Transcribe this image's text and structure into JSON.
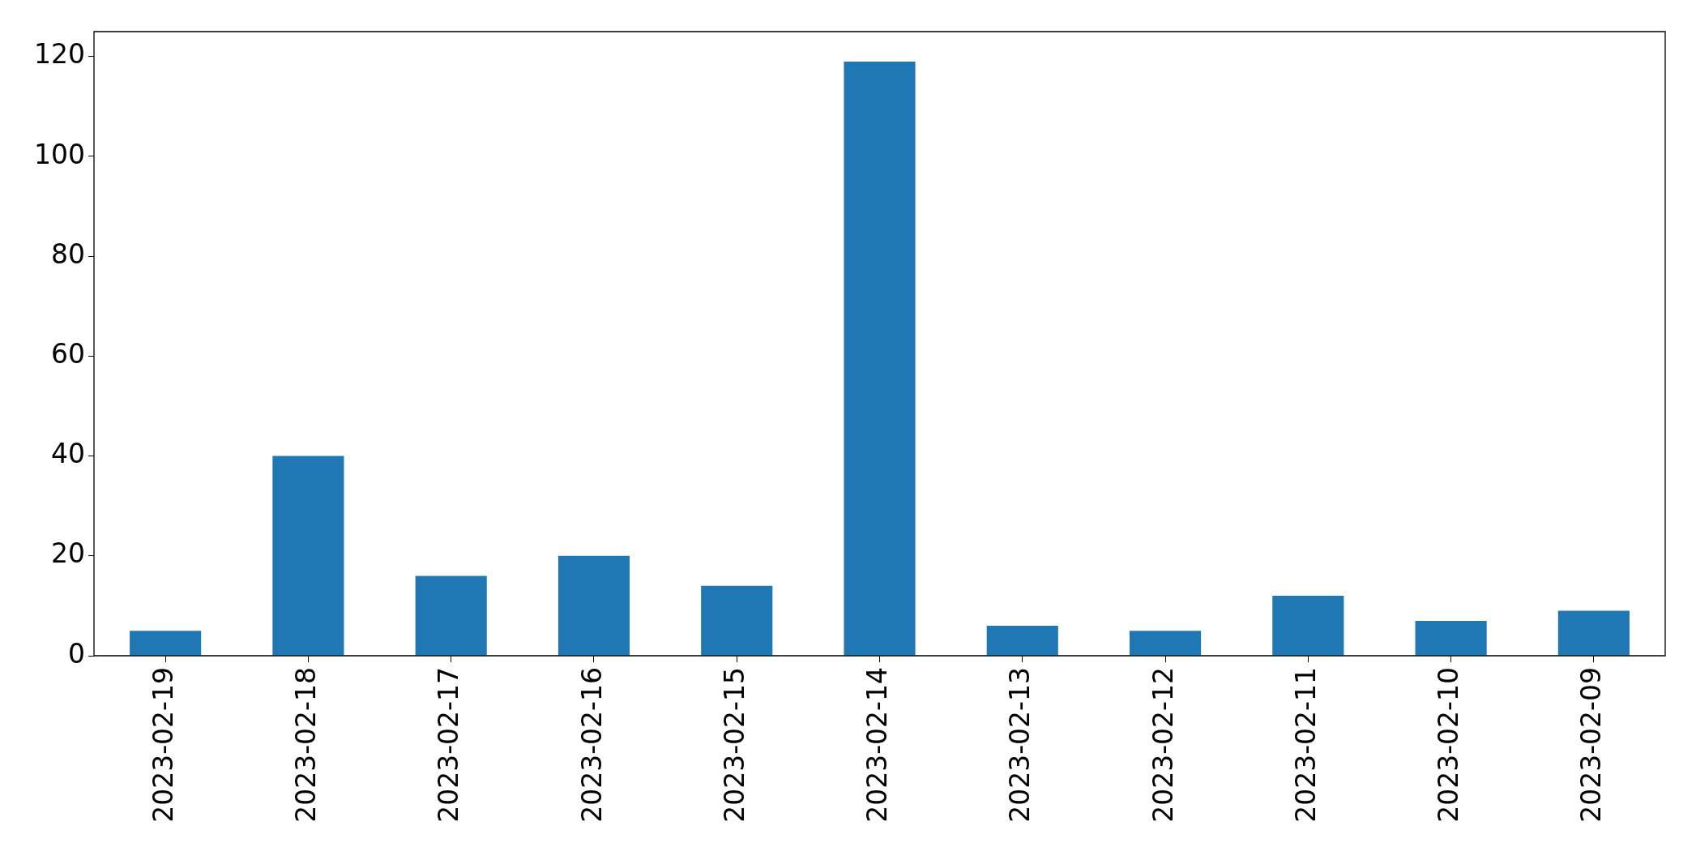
{
  "chart_data": {
    "type": "bar",
    "categories": [
      "2023-02-19",
      "2023-02-18",
      "2023-02-17",
      "2023-02-16",
      "2023-02-15",
      "2023-02-14",
      "2023-02-13",
      "2023-02-12",
      "2023-02-11",
      "2023-02-10",
      "2023-02-09"
    ],
    "values": [
      5,
      40,
      16,
      20,
      14,
      119,
      6,
      5,
      12,
      7,
      9
    ],
    "color": "#1f77b4",
    "ylim": [
      0,
      125
    ],
    "yticks": [
      0,
      20,
      40,
      60,
      80,
      100,
      120
    ]
  }
}
